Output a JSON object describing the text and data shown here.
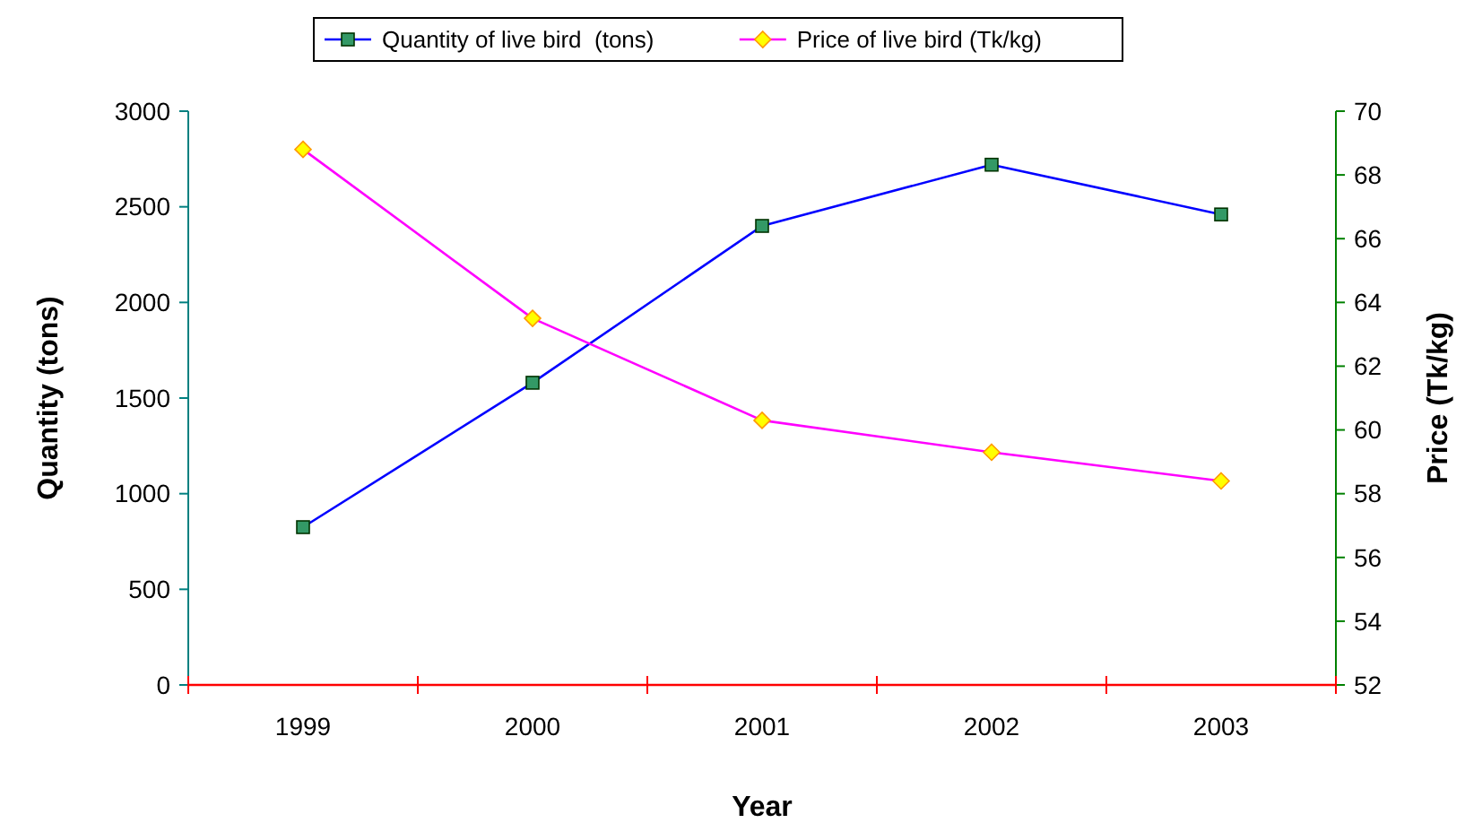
{
  "chart_data": {
    "type": "line",
    "xlabel": "Year",
    "ylabel": "Quantity (tons)",
    "y2label": "Price (Tk/kg)",
    "categories": [
      "1999",
      "2000",
      "2001",
      "2002",
      "2003"
    ],
    "series": [
      {
        "name": "Quantity of live bird  (tons)",
        "color": "#0000ff",
        "marker": "square",
        "values": [
          825,
          1580,
          2400,
          2720,
          2460
        ]
      },
      {
        "name": "Price of live bird (Tk/kg)",
        "color": "#ff00ff",
        "marker": "diamond",
        "axis": "y2",
        "values": [
          68.8,
          63.5,
          60.3,
          59.3,
          58.4
        ]
      }
    ],
    "ylim": [
      0,
      3000
    ],
    "yticks": [
      0,
      500,
      1000,
      1500,
      2000,
      2500,
      3000
    ],
    "y2lim": [
      52,
      70
    ],
    "y2ticks": [
      52,
      54,
      56,
      58,
      60,
      62,
      64,
      66,
      68,
      70
    ],
    "grid": false,
    "legend": "top"
  }
}
